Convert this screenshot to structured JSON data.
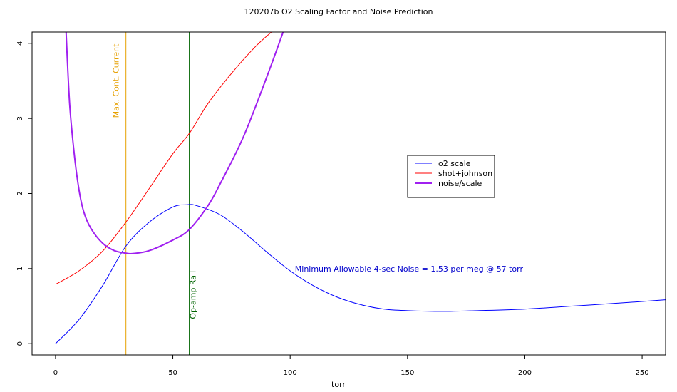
{
  "chart_data": {
    "type": "line",
    "title": "120207b   O2 Scaling Factor and Noise Prediction",
    "xlabel": "torr",
    "ylabel": "",
    "xlim": [
      -10,
      260
    ],
    "ylim": [
      -0.15,
      4.15
    ],
    "x_ticks": [
      0,
      50,
      100,
      150,
      200,
      250
    ],
    "y_ticks": [
      0,
      1,
      2,
      3,
      4
    ],
    "grid": false,
    "legend_position": "right-center",
    "series": [
      {
        "name": "o2 scale",
        "color": "#0000ff",
        "width": 1,
        "points": [
          [
            0,
            0
          ],
          [
            10,
            0.32
          ],
          [
            20,
            0.77
          ],
          [
            30,
            1.3
          ],
          [
            40,
            1.62
          ],
          [
            50,
            1.82
          ],
          [
            56,
            1.85
          ],
          [
            60,
            1.84
          ],
          [
            70,
            1.72
          ],
          [
            80,
            1.49
          ],
          [
            90,
            1.22
          ],
          [
            100,
            0.97
          ],
          [
            110,
            0.77
          ],
          [
            120,
            0.62
          ],
          [
            130,
            0.52
          ],
          [
            140,
            0.46
          ],
          [
            150,
            0.44
          ],
          [
            165,
            0.43
          ],
          [
            180,
            0.44
          ],
          [
            200,
            0.46
          ],
          [
            220,
            0.5
          ],
          [
            240,
            0.54
          ],
          [
            260,
            0.585
          ]
        ]
      },
      {
        "name": "shot+johnson",
        "color": "#ff0000",
        "width": 1,
        "points": [
          [
            0,
            0.79
          ],
          [
            10,
            0.97
          ],
          [
            20,
            1.23
          ],
          [
            30,
            1.62
          ],
          [
            40,
            2.07
          ],
          [
            50,
            2.53
          ],
          [
            57,
            2.8
          ],
          [
            65,
            3.2
          ],
          [
            75,
            3.6
          ],
          [
            85,
            3.95
          ],
          [
            92,
            4.15
          ]
        ]
      },
      {
        "name": "noise/scale",
        "color": "#a020f0",
        "width": 2,
        "points": [
          [
            4.5,
            4.15
          ],
          [
            6,
            3.2
          ],
          [
            8,
            2.52
          ],
          [
            10,
            2.05
          ],
          [
            12,
            1.76
          ],
          [
            15,
            1.54
          ],
          [
            20,
            1.34
          ],
          [
            25,
            1.24
          ],
          [
            30,
            1.205
          ],
          [
            33,
            1.2
          ],
          [
            40,
            1.24
          ],
          [
            50,
            1.38
          ],
          [
            57,
            1.52
          ],
          [
            65,
            1.84
          ],
          [
            70,
            2.12
          ],
          [
            80,
            2.75
          ],
          [
            90,
            3.55
          ],
          [
            97,
            4.15
          ]
        ]
      }
    ],
    "vlines": [
      {
        "x": 30,
        "color": "#e6a000",
        "label": "Max. Cont. Current",
        "label_y": 3.5
      },
      {
        "x": 57,
        "color": "#006400",
        "label": "Op-amp Rail",
        "label_y": 0.65
      }
    ],
    "annotations": [
      {
        "text": "Minimum Allowable 4-sec Noise =  1.53  per meg @  57  torr",
        "x": 102,
        "y": 1.0,
        "color": "#0000cc"
      }
    ]
  }
}
